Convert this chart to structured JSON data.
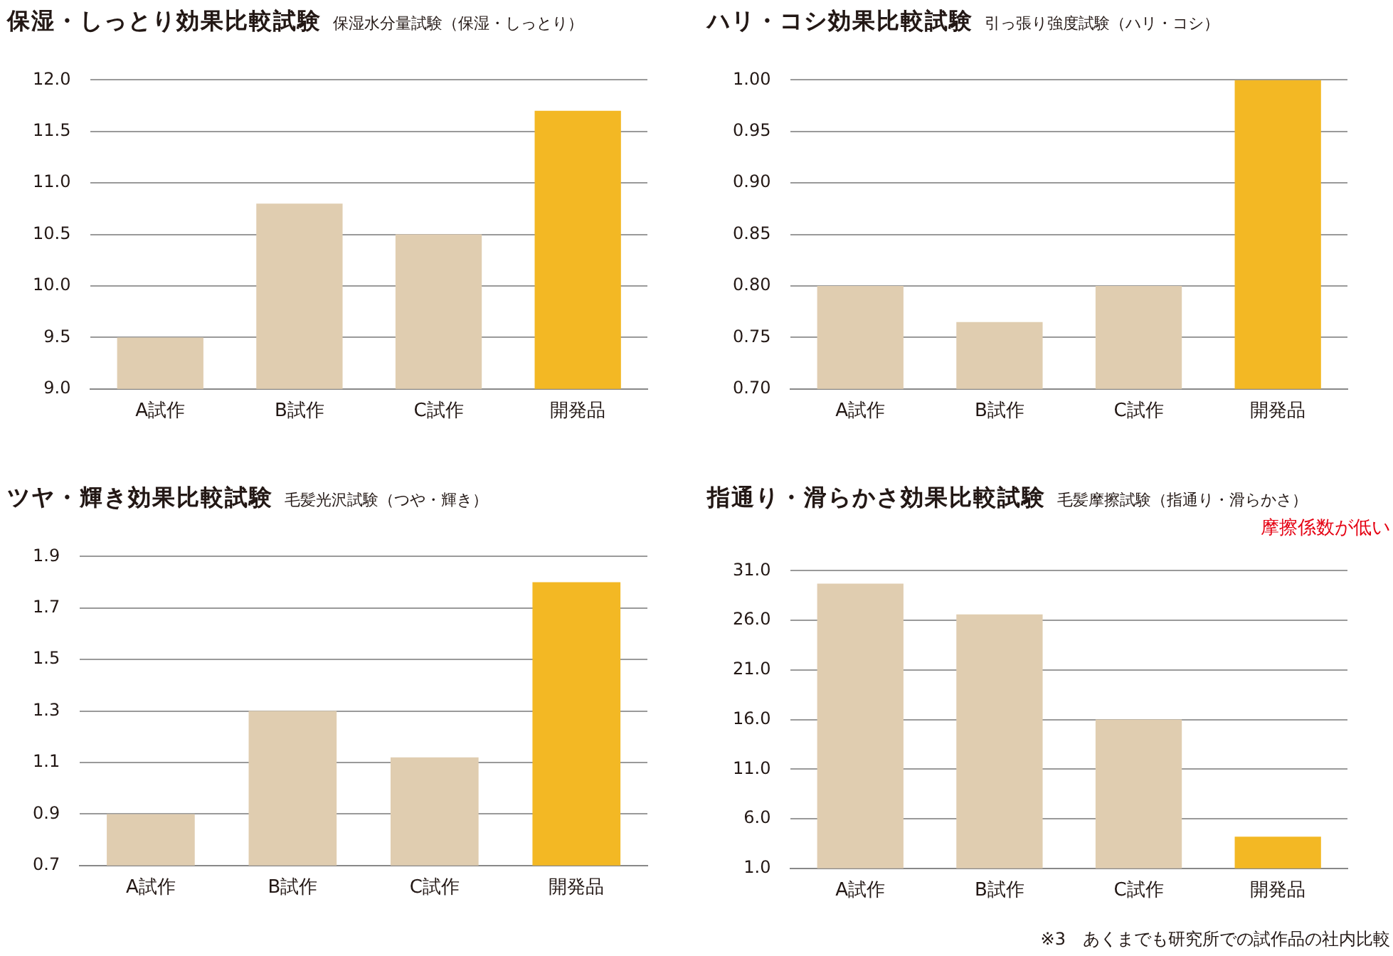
{
  "chart_data": [
    {
      "type": "bar",
      "title": "保湿・しっとり効果比較試験",
      "subtitle": "保湿水分量試験（保湿・しっとり）",
      "categories": [
        "A試作",
        "B試作",
        "C試作",
        "開発品"
      ],
      "values": [
        9.5,
        10.8,
        10.5,
        11.7
      ],
      "colors": [
        "#e0cdb0",
        "#e0cdb0",
        "#e0cdb0",
        "#f3b824"
      ],
      "ylim": [
        9,
        12
      ],
      "yticks": [
        {
          "value": 9,
          "label": "9.0"
        },
        {
          "value": 9.5,
          "label": "9.5"
        },
        {
          "value": 10,
          "label": "10.0"
        },
        {
          "value": 10.5,
          "label": "10.5"
        },
        {
          "value": 11,
          "label": "11.0"
        },
        {
          "value": 11.5,
          "label": "11.5"
        },
        {
          "value": 12,
          "label": "12.0"
        }
      ],
      "grid": "y",
      "legend": false
    },
    {
      "type": "bar",
      "title": "ハリ・コシ効果比較試験",
      "subtitle": "引っ張り強度試験（ハリ・コシ）",
      "categories": [
        "A試作",
        "B試作",
        "C試作",
        "開発品"
      ],
      "values": [
        0.8,
        0.765,
        0.8,
        1.0
      ],
      "colors": [
        "#e0cdb0",
        "#e0cdb0",
        "#e0cdb0",
        "#f3b824"
      ],
      "ylim": [
        0.7,
        1.0
      ],
      "yticks": [
        {
          "value": 0.7,
          "label": "0.70"
        },
        {
          "value": 0.75,
          "label": "0.75"
        },
        {
          "value": 0.8,
          "label": "0.80"
        },
        {
          "value": 0.85,
          "label": "0.85"
        },
        {
          "value": 0.9,
          "label": "0.90"
        },
        {
          "value": 0.95,
          "label": "0.95"
        },
        {
          "value": 1.0,
          "label": "1.00"
        }
      ],
      "grid": "y",
      "legend": false
    },
    {
      "type": "bar",
      "title": "ツヤ・輝き効果比較試験",
      "subtitle": "毛髪光沢試験（つや・輝き）",
      "categories": [
        "A試作",
        "B試作",
        "C試作",
        "開発品"
      ],
      "values": [
        0.9,
        1.3,
        1.12,
        1.8
      ],
      "colors": [
        "#e0cdb0",
        "#e0cdb0",
        "#e0cdb0",
        "#f3b824"
      ],
      "ylim": [
        0.7,
        1.9
      ],
      "yticks": [
        0.7,
        0.9,
        1.1,
        1.3,
        1.5,
        1.7,
        1.9
      ],
      "grid": "y",
      "legend": false
    },
    {
      "type": "bar",
      "title": "指通り・滑らかさ効果比較試験",
      "subtitle": "毛髪摩擦試験（指通り・滑らかさ）",
      "annotations": [
        "摩擦係数が低い",
        "※3　あくまでも研究所での試作品の社内比較"
      ],
      "categories": [
        "A試作",
        "B試作",
        "C試作",
        "開発品"
      ],
      "values": [
        29.7,
        26.6,
        16.0,
        4.2
      ],
      "colors": [
        "#e0cdb0",
        "#e0cdb0",
        "#e0cdb0",
        "#f3b824"
      ],
      "ylim": [
        1,
        31
      ],
      "yticks": [
        {
          "value": 1,
          "label": "1.0"
        },
        {
          "value": 6,
          "label": "6.0"
        },
        {
          "value": 11,
          "label": "11.0"
        },
        {
          "value": 16,
          "label": "16.0"
        },
        {
          "value": 21,
          "label": "21.0"
        },
        {
          "value": 26,
          "label": "26.0"
        },
        {
          "value": 31,
          "label": "31.0"
        }
      ],
      "grid": "y",
      "legend": false
    }
  ]
}
